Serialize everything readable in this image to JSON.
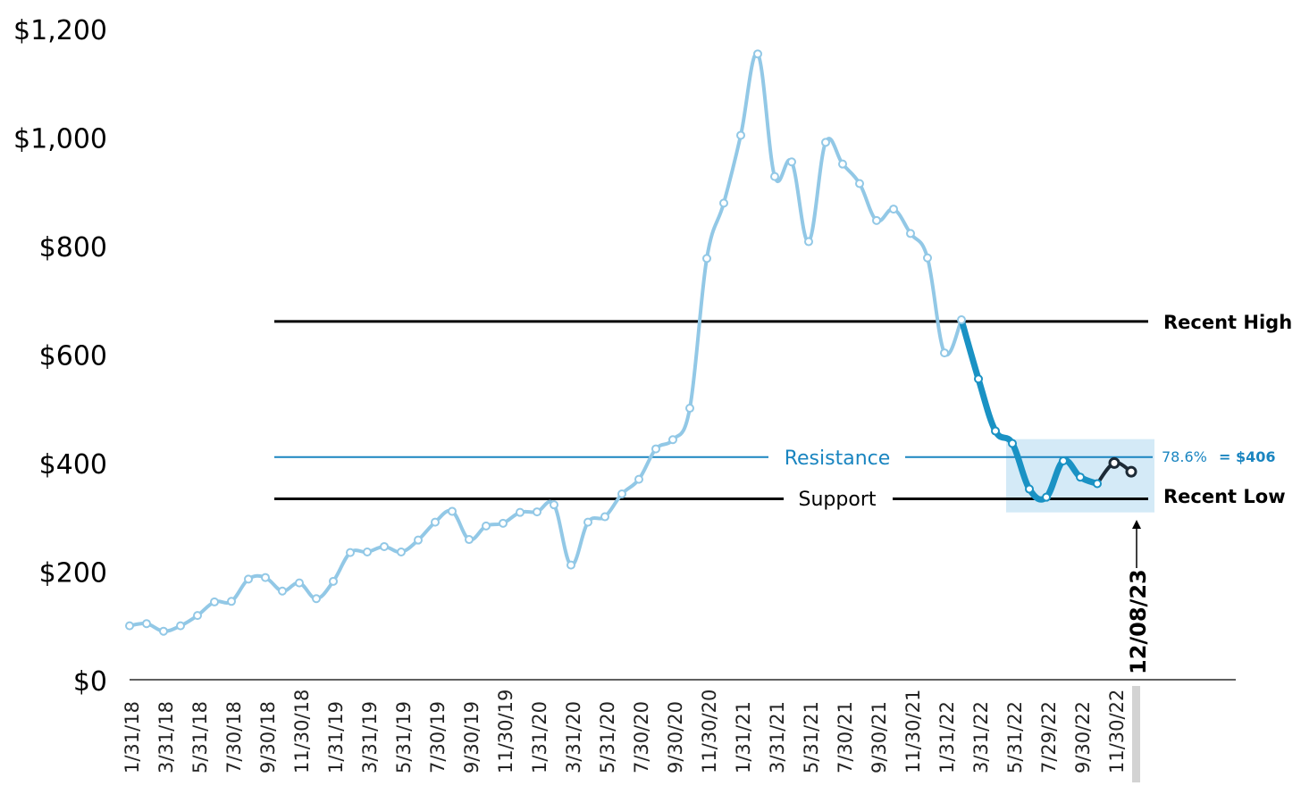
{
  "chart_data": {
    "type": "line",
    "title": "",
    "xlabel": "",
    "ylabel": "",
    "ylim": [
      0,
      1200
    ],
    "y_ticks": [
      "$0",
      "$200",
      "$400",
      "$600",
      "$800",
      "$1,000",
      "$1,200"
    ],
    "y_tick_values": [
      0,
      200,
      400,
      600,
      800,
      1000,
      1200
    ],
    "x_tick_labels": [
      "1/31/18",
      "3/31/18",
      "5/31/18",
      "7/30/18",
      "9/30/18",
      "11/30/18",
      "1/31/19",
      "3/31/19",
      "5/31/19",
      "7/30/19",
      "9/30/19",
      "11/30/19",
      "1/31/20",
      "3/31/20",
      "5/31/20",
      "7/30/20",
      "9/30/20",
      "11/30/20",
      "1/31/21",
      "3/31/21",
      "5/31/21",
      "7/30/21",
      "9/30/21",
      "11/30/21",
      "1/31/22",
      "3/31/22",
      "5/31/22",
      "7/29/22",
      "9/30/22",
      "11/30/22"
    ],
    "grid": false,
    "series": [
      {
        "color": "#92c8e6",
        "values": [
          101,
          105,
          91,
          101,
          120,
          145,
          146,
          187,
          190,
          165,
          180,
          151,
          183,
          236,
          237,
          247,
          237,
          259,
          292,
          312,
          260,
          285,
          290,
          310,
          311,
          324,
          213,
          292,
          302,
          344,
          371,
          427,
          444,
          502,
          778,
          880,
          1005,
          1155,
          929,
          956,
          809,
          992,
          952,
          916,
          848,
          869,
          824,
          779,
          604,
          665
        ]
      },
      {
        "color": "#1a92c4",
        "values": [
          665,
          556,
          460,
          437,
          353,
          338,
          405,
          375,
          363
        ]
      },
      {
        "color": "#1c2a36",
        "values": [
          363,
          401,
          385
        ]
      }
    ],
    "levels": [
      {
        "label": "Recent High",
        "value": 662,
        "color": "#000000"
      },
      {
        "label": "Resistance",
        "value": 412,
        "color": "#1a85c0"
      },
      {
        "label": "Support",
        "value": 335,
        "color": "#000000"
      },
      {
        "label": "Recent Low",
        "value": 335,
        "color": "#000000"
      }
    ],
    "fib_label": "78.6%",
    "fib_value": "= $406",
    "date_marker": "12/08/23",
    "highlight_range": [
      310,
      445
    ]
  }
}
